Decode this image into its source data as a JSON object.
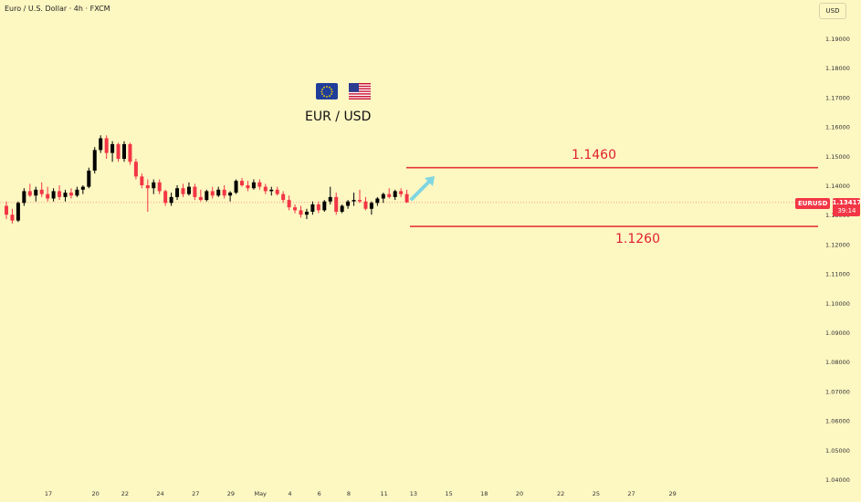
{
  "header": {
    "symbol_title": "Euro / U.S. Dollar · 4h · FXCM",
    "currency_button": "USD"
  },
  "price_badge": {
    "symbol": "EURUSD",
    "price": "1.13417",
    "countdown": "39:14"
  },
  "annotations": {
    "pair_title": "EUR / USD",
    "upper_level": "1.1460",
    "lower_level": "1.1260",
    "flags": [
      "eu-flag-icon",
      "us-flag-icon"
    ],
    "line_color": "#e53935",
    "arrow_color": "#7fd6e0"
  },
  "colors": {
    "background": "#fdf7c2",
    "up_candle": "#000000",
    "down_candle": "#f23645"
  },
  "chart_data": {
    "type": "candlestick",
    "timeframe": "4h",
    "ylim": [
      1.0385,
      1.1985
    ],
    "y_ticks": [
      "1.19000",
      "1.18000",
      "1.17000",
      "1.16000",
      "1.15000",
      "1.14000",
      "1.13000",
      "1.12000",
      "1.11000",
      "1.10000",
      "1.09000",
      "1.08000",
      "1.07000",
      "1.06000",
      "1.05000",
      "1.04000"
    ],
    "y_tick_values": [
      1.19,
      1.18,
      1.17,
      1.16,
      1.15,
      1.14,
      1.13,
      1.12,
      1.11,
      1.1,
      1.09,
      1.08,
      1.07,
      1.06,
      1.05,
      1.04
    ],
    "x_ticks": [
      "17",
      "20",
      "22",
      "24",
      "27",
      "29",
      "May",
      "4",
      "6",
      "8",
      "11",
      "13",
      "15",
      "18",
      "20",
      "22",
      "25",
      "27",
      "29"
    ],
    "x_tick_bars": [
      0,
      8,
      13,
      19,
      25,
      31,
      36,
      41,
      46,
      51,
      57,
      62,
      68,
      74,
      80,
      87,
      93,
      99,
      106
    ],
    "current_price": 1.13417,
    "horizontal_levels": [
      1.146,
      1.126
    ],
    "ohlc": [
      [
        1.133,
        1.1345,
        1.1285,
        1.13
      ],
      [
        1.13,
        1.132,
        1.127,
        1.128
      ],
      [
        1.128,
        1.1345,
        1.1275,
        1.134
      ],
      [
        1.134,
        1.139,
        1.133,
        1.138
      ],
      [
        1.138,
        1.1405,
        1.136,
        1.1365
      ],
      [
        1.1365,
        1.1395,
        1.1345,
        1.1385
      ],
      [
        1.1385,
        1.141,
        1.136,
        1.137
      ],
      [
        1.137,
        1.1395,
        1.1345,
        1.1355
      ],
      [
        1.1355,
        1.139,
        1.1345,
        1.138
      ],
      [
        1.138,
        1.14,
        1.135,
        1.136
      ],
      [
        1.136,
        1.1385,
        1.1345,
        1.1375
      ],
      [
        1.1375,
        1.139,
        1.1355,
        1.1365
      ],
      [
        1.1365,
        1.1395,
        1.136,
        1.1385
      ],
      [
        1.1385,
        1.14,
        1.137,
        1.1395
      ],
      [
        1.1395,
        1.146,
        1.139,
        1.145
      ],
      [
        1.145,
        1.153,
        1.144,
        1.152
      ],
      [
        1.152,
        1.157,
        1.151,
        1.156
      ],
      [
        1.156,
        1.157,
        1.149,
        1.151
      ],
      [
        1.151,
        1.155,
        1.148,
        1.154
      ],
      [
        1.154,
        1.1545,
        1.148,
        1.149
      ],
      [
        1.149,
        1.155,
        1.148,
        1.154
      ],
      [
        1.154,
        1.1545,
        1.147,
        1.148
      ],
      [
        1.148,
        1.149,
        1.142,
        1.143
      ],
      [
        1.143,
        1.144,
        1.139,
        1.14
      ],
      [
        1.14,
        1.142,
        1.131,
        1.139
      ],
      [
        1.139,
        1.142,
        1.137,
        1.141
      ],
      [
        1.141,
        1.142,
        1.137,
        1.138
      ],
      [
        1.138,
        1.1385,
        1.133,
        1.134
      ],
      [
        1.134,
        1.1375,
        1.133,
        1.136
      ],
      [
        1.136,
        1.14,
        1.135,
        1.139
      ],
      [
        1.139,
        1.1405,
        1.136,
        1.137
      ],
      [
        1.137,
        1.141,
        1.1365,
        1.1395
      ],
      [
        1.1395,
        1.1405,
        1.135,
        1.136
      ],
      [
        1.136,
        1.1385,
        1.1345,
        1.135
      ],
      [
        1.135,
        1.1385,
        1.1345,
        1.138
      ],
      [
        1.138,
        1.1395,
        1.1355,
        1.1365
      ],
      [
        1.1365,
        1.1395,
        1.136,
        1.1385
      ],
      [
        1.1385,
        1.14,
        1.1355,
        1.1365
      ],
      [
        1.1365,
        1.138,
        1.1345,
        1.1375
      ],
      [
        1.1375,
        1.142,
        1.137,
        1.1415
      ],
      [
        1.1415,
        1.1425,
        1.1395,
        1.14
      ],
      [
        1.14,
        1.1415,
        1.138,
        1.139
      ],
      [
        1.139,
        1.142,
        1.1385,
        1.141
      ],
      [
        1.141,
        1.142,
        1.1385,
        1.1395
      ],
      [
        1.1395,
        1.1405,
        1.137,
        1.138
      ],
      [
        1.138,
        1.1395,
        1.1365,
        1.1385
      ],
      [
        1.1385,
        1.1395,
        1.1365,
        1.137
      ],
      [
        1.137,
        1.138,
        1.134,
        1.135
      ],
      [
        1.135,
        1.1365,
        1.1315,
        1.1325
      ],
      [
        1.1325,
        1.1335,
        1.1305,
        1.1315
      ],
      [
        1.1315,
        1.133,
        1.129,
        1.13
      ],
      [
        1.13,
        1.132,
        1.1285,
        1.131
      ],
      [
        1.131,
        1.1345,
        1.13,
        1.1335
      ],
      [
        1.1335,
        1.1345,
        1.1305,
        1.1315
      ],
      [
        1.1315,
        1.135,
        1.131,
        1.1345
      ],
      [
        1.1345,
        1.1395,
        1.1335,
        1.136
      ],
      [
        1.136,
        1.1375,
        1.13,
        1.131
      ],
      [
        1.131,
        1.1335,
        1.1305,
        1.133
      ],
      [
        1.133,
        1.135,
        1.132,
        1.1345
      ],
      [
        1.1345,
        1.1375,
        1.133,
        1.135
      ],
      [
        1.135,
        1.1385,
        1.134,
        1.1345
      ],
      [
        1.1345,
        1.136,
        1.1315,
        1.132
      ],
      [
        1.132,
        1.1345,
        1.13,
        1.134
      ],
      [
        1.134,
        1.136,
        1.133,
        1.1355
      ],
      [
        1.1355,
        1.1375,
        1.134,
        1.137
      ],
      [
        1.137,
        1.139,
        1.1355,
        1.136
      ],
      [
        1.136,
        1.1385,
        1.135,
        1.138
      ],
      [
        1.138,
        1.139,
        1.136,
        1.137
      ],
      [
        1.137,
        1.1385,
        1.134,
        1.1342
      ]
    ]
  }
}
